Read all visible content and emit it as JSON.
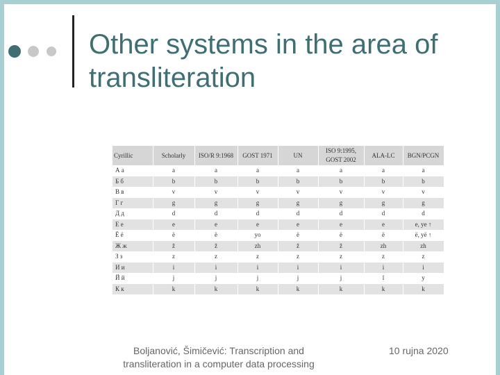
{
  "slide": {
    "title": "Other systems in the area of transliteration",
    "colors": {
      "title": "#3d6f73",
      "frame": "#a8cfd2",
      "dot_dark": "#3d6f73",
      "dot_light": "#c8c8c8"
    }
  },
  "table": {
    "headers": [
      "Cyrillic",
      "Scholarly",
      "ISO/R 9:1968",
      "GOST 1971",
      "UN",
      "ISO 9:1995, GOST 2002",
      "ALA-LC",
      "BGN/PCGN"
    ],
    "rows": [
      [
        "А а",
        "a",
        "a",
        "a",
        "a",
        "a",
        "a",
        "a"
      ],
      [
        "Б б",
        "b",
        "b",
        "b",
        "b",
        "b",
        "b",
        "b"
      ],
      [
        "В в",
        "v",
        "v",
        "v",
        "v",
        "v",
        "v",
        "v"
      ],
      [
        "Г г",
        "g",
        "g",
        "g",
        "g",
        "g",
        "g",
        "g"
      ],
      [
        "Д д",
        "d",
        "d",
        "d",
        "d",
        "d",
        "d",
        "d"
      ],
      [
        "Е е",
        "e",
        "e",
        "e",
        "e",
        "e",
        "e",
        "e, ye ↑"
      ],
      [
        "Ё ё",
        "ë",
        "ë",
        "yo",
        "ë",
        "ë",
        "ë",
        "ë, yë ↑"
      ],
      [
        "Ж ж",
        "ž",
        "ž",
        "zh",
        "ž",
        "ž",
        "zh",
        "zh"
      ],
      [
        "З з",
        "z",
        "z",
        "z",
        "z",
        "z",
        "z",
        "z"
      ],
      [
        "И и",
        "i",
        "i",
        "i",
        "i",
        "i",
        "i",
        "i"
      ],
      [
        "Й й",
        "j",
        "j",
        "j",
        "j",
        "j",
        "ĭ",
        "y"
      ],
      [
        "К к",
        "k",
        "k",
        "k",
        "k",
        "k",
        "k",
        "k"
      ]
    ]
  },
  "footer": {
    "citation": "Boljanović, Šimičević: Transcription and transliteration in a computer data processing",
    "date": "10 rujna 2020"
  }
}
